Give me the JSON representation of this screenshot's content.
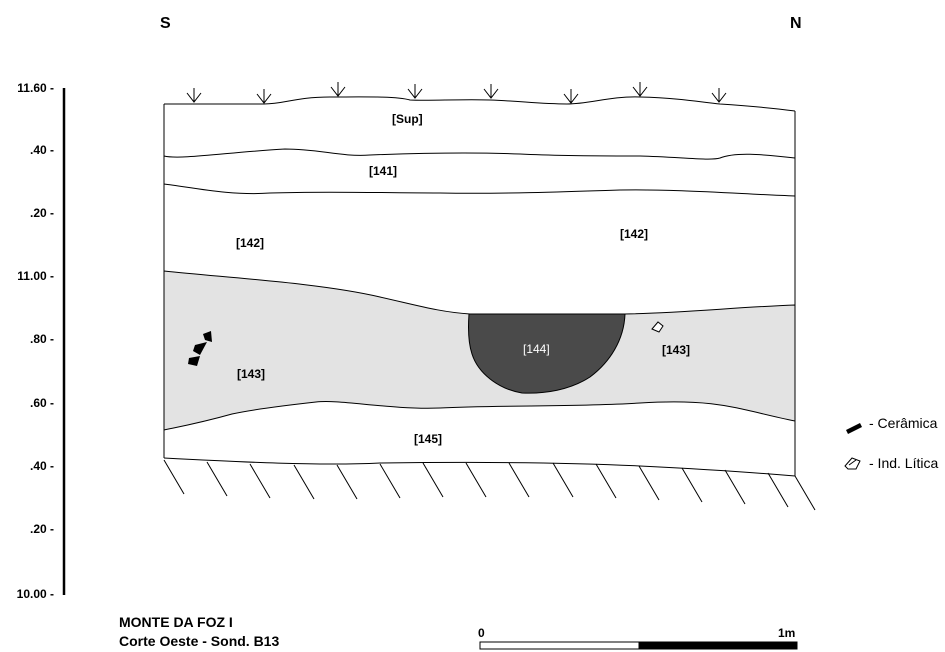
{
  "orientation": {
    "left": "S",
    "right": "N"
  },
  "elevation_scale": [
    "11.60 -",
    ".40 -",
    ".20 -",
    "11.00 -",
    ".80 -",
    ".60 -",
    ".40 -",
    ".20 -",
    "10.00 -"
  ],
  "units": {
    "sup": "[Sup]",
    "u141": "[141]",
    "u142a": "[142]",
    "u142b": "[142]",
    "u143a": "[143]",
    "u143b": "[143]",
    "u144": "[144]",
    "u145": "[145]"
  },
  "legend": {
    "ceramica": "- Cerâmica",
    "litica": "- Ind. Lítica"
  },
  "title": {
    "site": "MONTE DA FOZ I",
    "section": "Corte Oeste - Sond. B13"
  },
  "scale_bar": {
    "start": "0",
    "end": "1m"
  },
  "colors": {
    "layer_143": "#e3e3e3",
    "feature_144": "#4a4a4a",
    "ink": "#000000"
  }
}
